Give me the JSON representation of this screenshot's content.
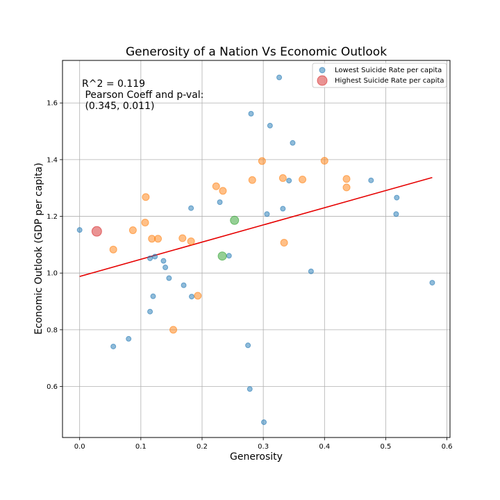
{
  "chart_data": {
    "type": "scatter",
    "title": "Generosity of a Nation Vs Economic Outlook",
    "xlabel": "Generosity",
    "ylabel": "Economic Outlook (GDP per capita)",
    "xlim": [
      -0.028,
      0.605
    ],
    "ylim": [
      0.42,
      1.75
    ],
    "xticks": [
      "0.0",
      "0.1",
      "0.2",
      "0.3",
      "0.4",
      "0.5",
      "0.6"
    ],
    "yticks": [
      "0.6",
      "0.8",
      "1.0",
      "1.2",
      "1.4",
      "1.6"
    ],
    "grid": true,
    "legend_position": "top-right",
    "annotation": [
      "R^2 = 0.119",
      " Pearson Coeff and p-val:",
      " (0.345, 0.011)"
    ],
    "series": [
      {
        "name": "Lowest Suicide Rate per capita",
        "color": "#1f77b4",
        "points": [
          [
            0.0,
            1.152
          ],
          [
            0.055,
            0.741
          ],
          [
            0.08,
            0.768
          ],
          [
            0.115,
            0.864
          ],
          [
            0.115,
            1.052
          ],
          [
            0.12,
            0.918
          ],
          [
            0.123,
            1.058
          ],
          [
            0.137,
            1.043
          ],
          [
            0.14,
            1.02
          ],
          [
            0.146,
            0.982
          ],
          [
            0.17,
            0.957
          ],
          [
            0.182,
            1.229
          ],
          [
            0.183,
            0.917
          ],
          [
            0.229,
            1.25
          ],
          [
            0.244,
            1.061
          ],
          [
            0.275,
            0.745
          ],
          [
            0.278,
            0.591
          ],
          [
            0.28,
            1.562
          ],
          [
            0.301,
            0.474
          ],
          [
            0.306,
            1.208
          ],
          [
            0.311,
            1.52
          ],
          [
            0.326,
            1.69
          ],
          [
            0.332,
            1.227
          ],
          [
            0.342,
            1.326
          ],
          [
            0.348,
            1.459
          ],
          [
            0.378,
            1.006
          ],
          [
            0.476,
            1.327
          ],
          [
            0.517,
            1.208
          ],
          [
            0.518,
            1.266
          ],
          [
            0.576,
            0.966
          ]
        ]
      },
      {
        "name": "",
        "color": "#ff7f0e",
        "points": [
          [
            0.055,
            1.083
          ],
          [
            0.087,
            1.151
          ],
          [
            0.107,
            1.178
          ],
          [
            0.108,
            1.268
          ],
          [
            0.118,
            1.121
          ],
          [
            0.128,
            1.121
          ],
          [
            0.153,
            0.8
          ],
          [
            0.168,
            1.123
          ],
          [
            0.182,
            1.112
          ],
          [
            0.193,
            0.92
          ],
          [
            0.223,
            1.306
          ],
          [
            0.234,
            1.29
          ],
          [
            0.282,
            1.328
          ],
          [
            0.298,
            1.395
          ],
          [
            0.332,
            1.335
          ],
          [
            0.334,
            1.107
          ],
          [
            0.364,
            1.33
          ],
          [
            0.4,
            1.396
          ],
          [
            0.436,
            1.332
          ],
          [
            0.436,
            1.302
          ]
        ]
      },
      {
        "name": "",
        "color": "#2ca02c",
        "points": [
          [
            0.253,
            1.186
          ],
          [
            0.233,
            1.06
          ]
        ]
      },
      {
        "name": "Highest Suicide Rate per capita",
        "color": "#d62728",
        "points": [
          [
            0.028,
            1.147
          ]
        ]
      }
    ],
    "regression_line": {
      "color": "#e60000",
      "x": [
        0.0,
        0.576
      ],
      "y": [
        0.988,
        1.337
      ]
    }
  }
}
